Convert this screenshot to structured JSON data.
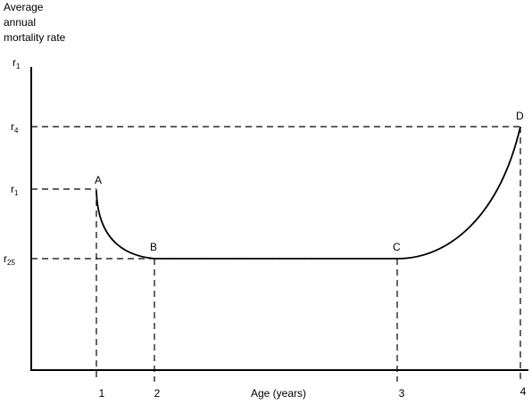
{
  "y_axis": {
    "title_lines": [
      "Average",
      "annual",
      "mortality rate"
    ]
  },
  "y_labels": [
    {
      "base": "r",
      "sub": "1"
    },
    {
      "base": "r",
      "sub": "4"
    },
    {
      "base": "r",
      "sub": "1"
    },
    {
      "base": "r",
      "sub": "25"
    }
  ],
  "points": [
    "A",
    "B",
    "C",
    "D"
  ],
  "x_labels": [
    "1",
    "2",
    "3",
    "4"
  ],
  "x_axis_title": "Age (years)"
}
